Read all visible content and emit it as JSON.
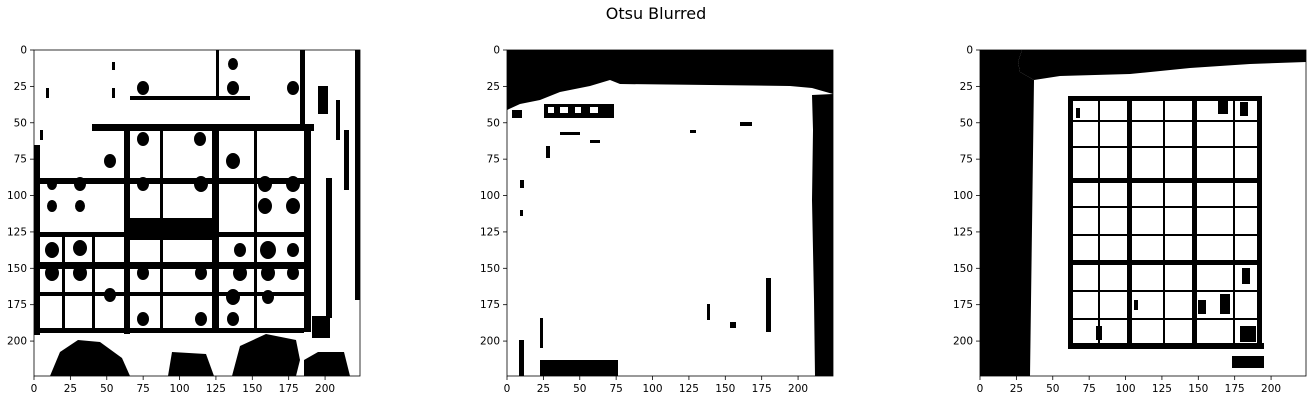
{
  "figure": {
    "suptitle": "Otsu Blurred"
  },
  "chart_data": [
    {
      "type": "heatmap",
      "title": "",
      "colormap": "binary (black / white)",
      "xlim": [
        0,
        224
      ],
      "ylim": [
        224,
        0
      ],
      "xticks": [
        0,
        25,
        50,
        75,
        100,
        125,
        150,
        175,
        200
      ],
      "yticks": [
        0,
        25,
        50,
        75,
        100,
        125,
        150,
        175,
        200
      ],
      "content": "thresholded sudoku photo, grid lines and digits in black"
    },
    {
      "type": "heatmap",
      "title": "",
      "colormap": "binary (black / white)",
      "xlim": [
        0,
        224
      ],
      "ylim": [
        224,
        0
      ],
      "xticks": [
        0,
        25,
        50,
        75,
        100,
        125,
        150,
        175,
        200
      ],
      "yticks": [
        0,
        25,
        50,
        75,
        100,
        125,
        150,
        175,
        200
      ],
      "content": "mostly white region with black top band and right edge"
    },
    {
      "type": "heatmap",
      "title": "",
      "colormap": "binary (black / white)",
      "xlim": [
        0,
        224
      ],
      "ylim": [
        224,
        0
      ],
      "xticks": [
        0,
        25,
        50,
        75,
        100,
        125,
        150,
        175,
        200
      ],
      "yticks": [
        0,
        25,
        50,
        75,
        100,
        125,
        150,
        175,
        200
      ],
      "content": "sudoku grid with black left band"
    }
  ]
}
